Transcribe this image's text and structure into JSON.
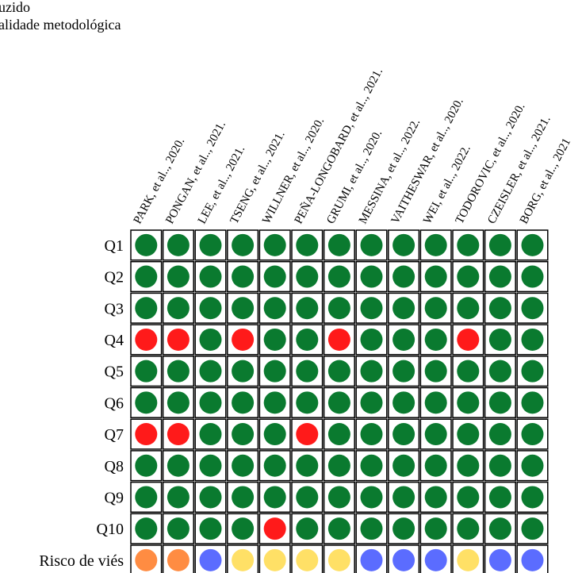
{
  "header": {
    "line1": "uzido",
    "line2": "alidade metodológica"
  },
  "studies": [
    "PARK, et al.., 2020.",
    "PONGAN, et al.., 2021.",
    "LEE, et al.., 2021.",
    "TSENG, et al.., 2021.",
    "WILLNER, et al.., 2020.",
    "PEÑA-LONGOBARD, et al.., 2021.",
    "GRUMI, et al.., 2020.",
    "MESSINA, et al.., 2022.",
    "VAITHESWAR, et al.., 2020.",
    "WEI, et al.., 2022.",
    "TODOROVIC, et al.., 2020.",
    "CZEISLER, et al.., 2021.",
    "BORG, et al.., 2021"
  ],
  "rows": [
    {
      "label": "Q1",
      "cells": [
        "G",
        "G",
        "G",
        "G",
        "G",
        "G",
        "G",
        "G",
        "G",
        "G",
        "G",
        "G",
        "G"
      ]
    },
    {
      "label": "Q2",
      "cells": [
        "G",
        "G",
        "G",
        "G",
        "G",
        "G",
        "G",
        "G",
        "G",
        "G",
        "G",
        "G",
        "G"
      ]
    },
    {
      "label": "Q3",
      "cells": [
        "G",
        "G",
        "G",
        "G",
        "G",
        "G",
        "G",
        "G",
        "G",
        "G",
        "G",
        "G",
        "G"
      ]
    },
    {
      "label": "Q4",
      "cells": [
        "R",
        "R",
        "G",
        "R",
        "G",
        "G",
        "R",
        "G",
        "G",
        "G",
        "R",
        "G",
        "G"
      ]
    },
    {
      "label": "Q5",
      "cells": [
        "G",
        "G",
        "G",
        "G",
        "G",
        "G",
        "G",
        "G",
        "G",
        "G",
        "G",
        "G",
        "G"
      ]
    },
    {
      "label": "Q6",
      "cells": [
        "G",
        "G",
        "G",
        "G",
        "G",
        "G",
        "G",
        "G",
        "G",
        "G",
        "G",
        "G",
        "G"
      ]
    },
    {
      "label": "Q7",
      "cells": [
        "R",
        "R",
        "G",
        "G",
        "G",
        "R",
        "G",
        "G",
        "G",
        "G",
        "G",
        "G",
        "G"
      ]
    },
    {
      "label": "Q8",
      "cells": [
        "G",
        "G",
        "G",
        "G",
        "G",
        "G",
        "G",
        "G",
        "G",
        "G",
        "G",
        "G",
        "G"
      ]
    },
    {
      "label": "Q9",
      "cells": [
        "G",
        "G",
        "G",
        "G",
        "G",
        "G",
        "G",
        "G",
        "G",
        "G",
        "G",
        "G",
        "G"
      ]
    },
    {
      "label": "Q10",
      "cells": [
        "G",
        "G",
        "G",
        "G",
        "R",
        "G",
        "G",
        "G",
        "G",
        "G",
        "G",
        "G",
        "G"
      ]
    },
    {
      "label": "Risco de viés",
      "cells": [
        "O",
        "O",
        "B",
        "Y",
        "Y",
        "Y",
        "Y",
        "B",
        "B",
        "B",
        "Y",
        "B",
        "B"
      ]
    }
  ],
  "colors": {
    "G": "#0a7a2f",
    "R": "#ff1a1a",
    "O": "#ff8c42",
    "Y": "#ffe066",
    "B": "#5b6cff",
    "border": "#000000"
  }
}
